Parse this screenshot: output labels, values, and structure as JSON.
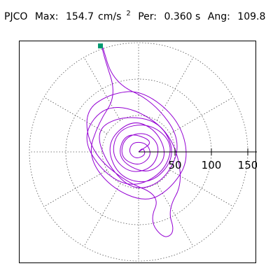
{
  "header": {
    "station": "PJCO",
    "max_label": "Max:",
    "max_value": "154.7",
    "max_unit_base": "cm/s",
    "max_unit_exp": "2",
    "per_label": "Per:",
    "per_value": "0.360 s",
    "ang_label": "Ang:",
    "ang_value": "109.8"
  },
  "chart_data": {
    "type": "polar-hodogram",
    "max_value": 154.7,
    "max_unit": "cm/s²",
    "period_s": 0.36,
    "angle_deg": 109.8,
    "r_ticks": [
      50,
      100,
      150
    ],
    "r_tick_labels": [
      "50",
      "100",
      "150"
    ],
    "r_max": 160,
    "grid_rings": [
      50,
      100,
      150
    ],
    "grid_spokes_deg": [
      0,
      30,
      60,
      90,
      120,
      150,
      180,
      210,
      240,
      270,
      300,
      330
    ],
    "grid": "dotted",
    "trace_color": "#9400D3",
    "marker_color": "#009970",
    "peak_marker": {
      "angle_deg": 109.8,
      "r": 154.7
    },
    "trace_points": [
      [
        0,
        0
      ],
      [
        22,
        15
      ],
      [
        -18,
        28
      ],
      [
        -30,
        -10
      ],
      [
        12,
        -32
      ],
      [
        40,
        -8
      ],
      [
        25,
        30
      ],
      [
        -10,
        45
      ],
      [
        -45,
        12
      ],
      [
        -28,
        -35
      ],
      [
        18,
        -45
      ],
      [
        52,
        -5
      ],
      [
        30,
        42
      ],
      [
        -22,
        50
      ],
      [
        -60,
        30
      ],
      [
        -42,
        -20
      ],
      [
        -5,
        -55
      ],
      [
        38,
        -38
      ],
      [
        60,
        15
      ],
      [
        20,
        70
      ],
      [
        -35,
        95
      ],
      [
        -52,
        154
      ],
      [
        -48,
        132
      ],
      [
        -30,
        78
      ],
      [
        -55,
        40
      ],
      [
        -70,
        -5
      ],
      [
        -40,
        -48
      ],
      [
        10,
        -70
      ],
      [
        45,
        -50
      ],
      [
        70,
        -10
      ],
      [
        55,
        45
      ],
      [
        5,
        85
      ],
      [
        -40,
        80
      ],
      [
        -75,
        55
      ],
      [
        -65,
        0
      ],
      [
        -20,
        -40
      ],
      [
        30,
        -60
      ],
      [
        15,
        -95
      ],
      [
        35,
        -120
      ],
      [
        50,
        -110
      ],
      [
        40,
        -80
      ],
      [
        62,
        -40
      ],
      [
        45,
        25
      ],
      [
        -5,
        60
      ],
      [
        -50,
        62
      ],
      [
        -78,
        20
      ],
      [
        -50,
        -28
      ],
      [
        -8,
        -50
      ],
      [
        35,
        -28
      ],
      [
        48,
        12
      ],
      [
        15,
        40
      ],
      [
        -28,
        32
      ],
      [
        -38,
        -5
      ],
      [
        -12,
        -30
      ],
      [
        20,
        -22
      ],
      [
        30,
        8
      ],
      [
        10,
        28
      ],
      [
        -20,
        20
      ],
      [
        -25,
        -8
      ],
      [
        0,
        -20
      ],
      [
        18,
        -6
      ],
      [
        12,
        12
      ],
      [
        -8,
        14
      ],
      [
        -14,
        0
      ],
      [
        -4,
        -10
      ],
      [
        10,
        -4
      ],
      [
        6,
        6
      ],
      [
        0,
        0
      ]
    ]
  }
}
